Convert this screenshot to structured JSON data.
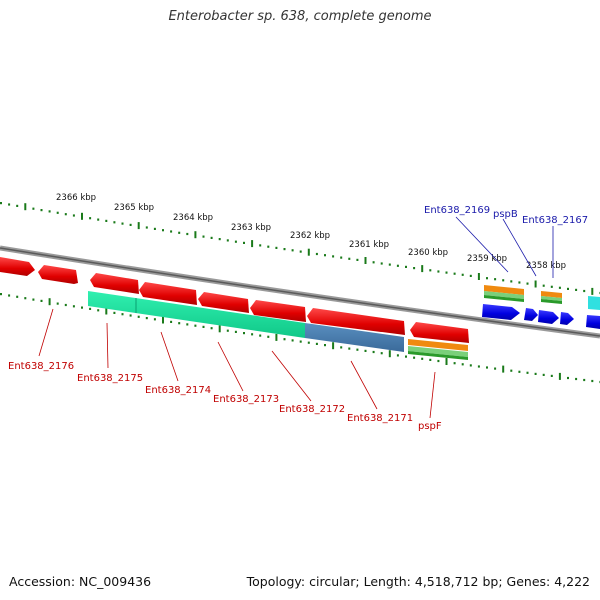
{
  "title": "Enterobacter sp. 638, complete genome",
  "footer": {
    "accession": "Accession: NC_009436",
    "summary": "Topology: circular; Length: 4,518,712 bp; Genes: 4,222"
  },
  "colors": {
    "forward_cds": "#0000ee",
    "reverse_cds": "#ee0000",
    "forward_label": "#1a1aaa",
    "reverse_label": "#c00000",
    "tick": "#1a7a1a",
    "backbone": "#888888"
  },
  "kbp_labels": [
    "2366 kbp",
    "2365 kbp",
    "2364 kbp",
    "2363 kbp",
    "2362 kbp",
    "2361 kbp",
    "2360 kbp",
    "2359 kbp",
    "2358 kbp"
  ],
  "gene_labels_forward": [
    "Ent638_2169",
    "pspB",
    "Ent638_2167"
  ],
  "gene_labels_reverse": [
    "Ent638_2176",
    "Ent638_2175",
    "Ent638_2174",
    "Ent638_2173",
    "Ent638_2172",
    "Ent638_2171",
    "pspF"
  ]
}
